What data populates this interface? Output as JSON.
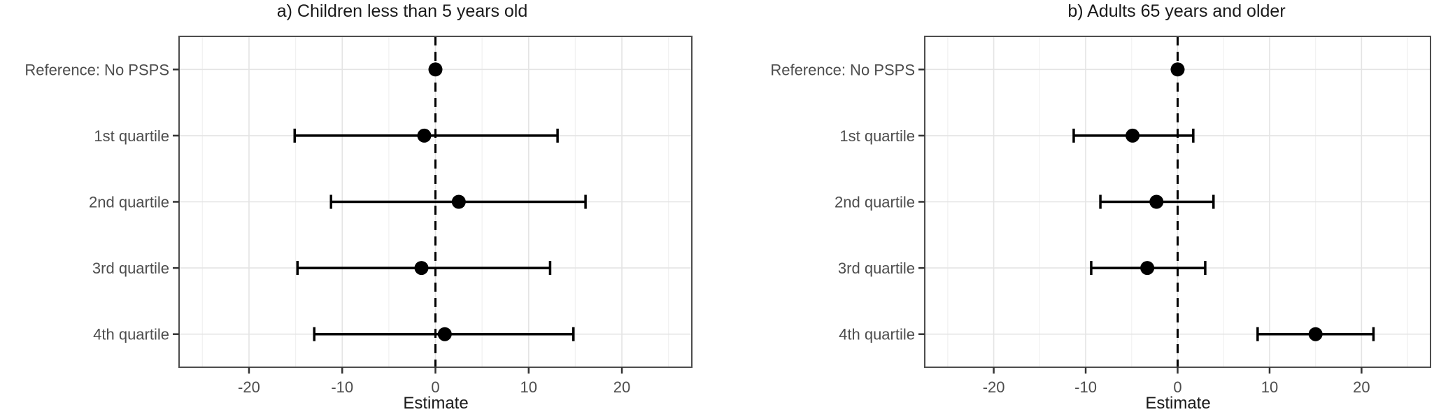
{
  "figure": {
    "background": "#ffffff",
    "panel_border_color": "#4d4d4d",
    "grid_major_color": "#e4e4e4",
    "grid_minor_color": "#f1f1f1",
    "axis_tick_color": "#333333",
    "tick_label_color": "#4d4d4d",
    "category_label_color": "#4d4d4d",
    "title_color": "#1a1a1a",
    "data_color": "#000000"
  },
  "chart_data": [
    {
      "type": "scatter",
      "subtype": "horizontal-pointrange-forest",
      "title": "a) Children less than 5 years old",
      "xlabel": "Estimate",
      "categories": [
        "Reference: No PSPS",
        "1st quartile",
        "2nd quartile",
        "3rd quartile",
        "4th quartile"
      ],
      "estimates": [
        0,
        -1.2,
        2.5,
        -1.5,
        1.0
      ],
      "ci_low": [
        null,
        -15.1,
        -11.2,
        -14.8,
        -13.0
      ],
      "ci_high": [
        null,
        13.1,
        16.1,
        12.3,
        14.8
      ],
      "xlim": [
        -27.5,
        27.5
      ],
      "xticks": [
        -20,
        -10,
        0,
        10,
        20
      ],
      "xticks_minor": [
        -25,
        -15,
        -5,
        5,
        15,
        25
      ],
      "reference_line_x": 0,
      "reference_line_style": "dashed",
      "grid": true,
      "legend": "none"
    },
    {
      "type": "scatter",
      "subtype": "horizontal-pointrange-forest",
      "title": "b) Adults 65 years and older",
      "xlabel": "Estimate",
      "categories": [
        "Reference: No PSPS",
        "1st quartile",
        "2nd quartile",
        "3rd quartile",
        "4th quartile"
      ],
      "estimates": [
        0,
        -4.9,
        -2.3,
        -3.3,
        15.0
      ],
      "ci_low": [
        null,
        -11.3,
        -8.4,
        -9.4,
        8.7
      ],
      "ci_high": [
        null,
        1.7,
        3.9,
        3.0,
        21.3
      ],
      "xlim": [
        -27.5,
        27.5
      ],
      "xticks": [
        -20,
        -10,
        0,
        10,
        20
      ],
      "xticks_minor": [
        -25,
        -15,
        -5,
        5,
        15,
        25
      ],
      "reference_line_x": 0,
      "reference_line_style": "dashed",
      "grid": true,
      "legend": "none"
    }
  ]
}
